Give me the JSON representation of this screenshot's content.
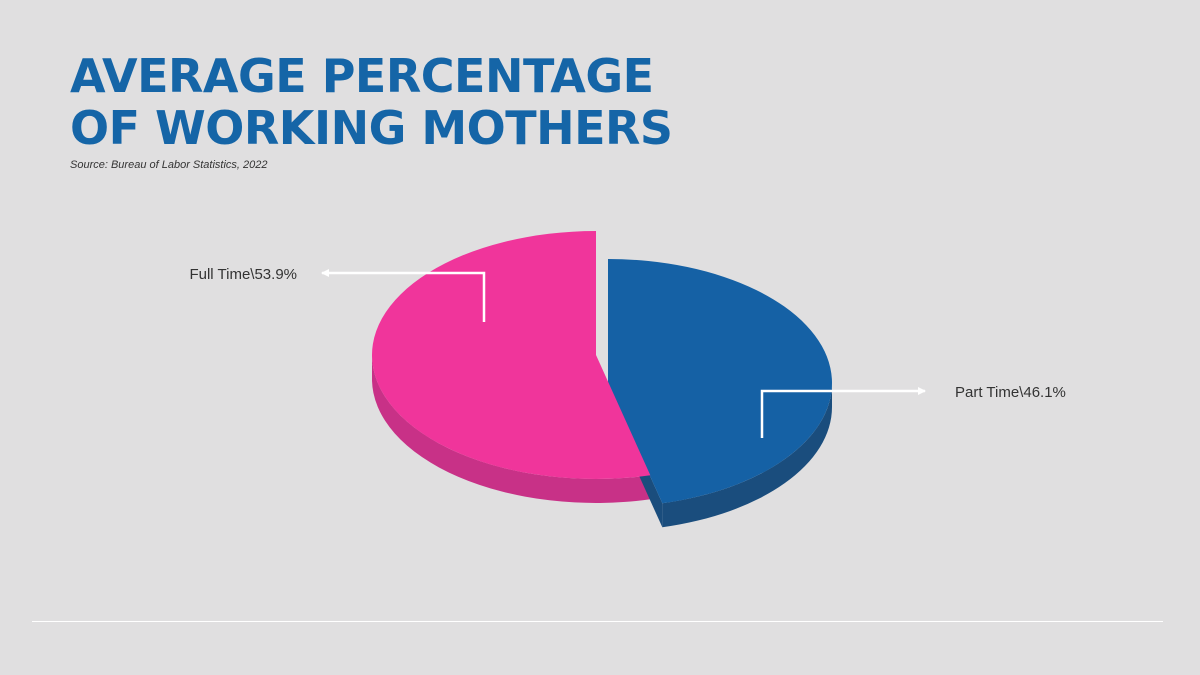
{
  "title_line1": "AVERAGE PERCENTAGE",
  "title_line2": "OF WORKING MOTHERS",
  "source": "Source: Bureau of Labor Statistics, 2022",
  "colors": {
    "title": "#1565a7",
    "full_time_top": "#f0359b",
    "full_time_side": "#c83187",
    "part_time_top": "#1561a5",
    "part_time_side": "#1a4d7d",
    "background": "#e0dfe0"
  },
  "chart_data": {
    "type": "pie",
    "title": "AVERAGE PERCENTAGE OF WORKING MOTHERS",
    "slices": [
      {
        "name": "Full Time",
        "value": 53.9,
        "label": "Full Time\\53.9%"
      },
      {
        "name": "Part Time",
        "value": 46.1,
        "label": "Part Time\\46.1%"
      }
    ]
  }
}
